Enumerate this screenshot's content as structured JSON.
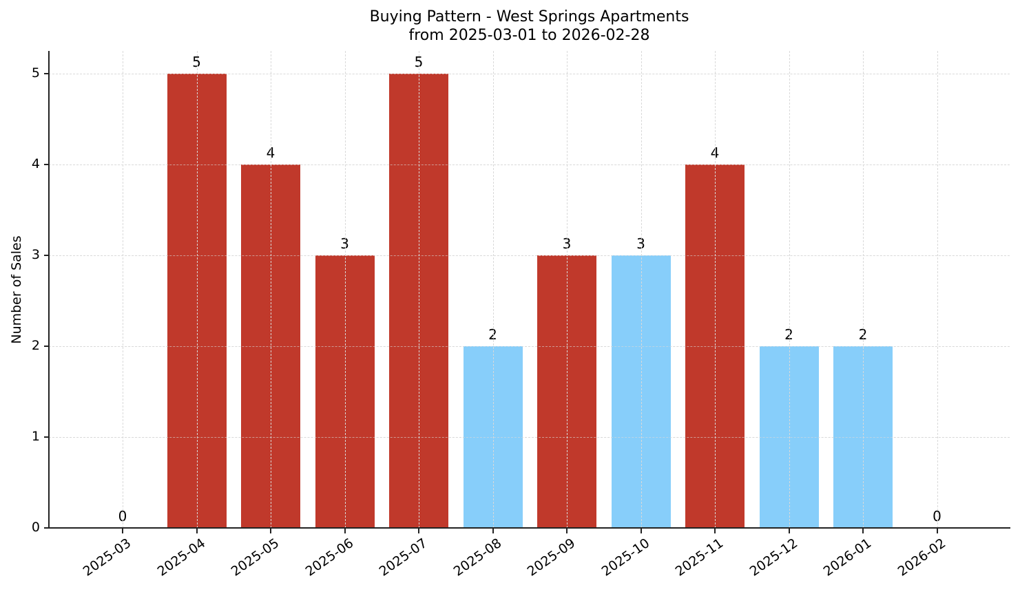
{
  "chart_data": {
    "type": "bar",
    "title": "Buying Pattern - West Springs Apartments",
    "subtitle": "from 2025-03-01 to 2026-02-28",
    "xlabel": "",
    "ylabel": "Number of Sales",
    "ylim": [
      0,
      5.25
    ],
    "yticks": [
      0,
      1,
      2,
      3,
      4,
      5
    ],
    "grid": true,
    "legend": null,
    "categories": [
      "2025-03",
      "2025-04",
      "2025-05",
      "2025-06",
      "2025-07",
      "2025-08",
      "2025-09",
      "2025-10",
      "2025-11",
      "2025-12",
      "2026-01",
      "2026-02"
    ],
    "values": [
      0,
      5,
      4,
      3,
      5,
      2,
      3,
      3,
      4,
      2,
      2,
      0
    ],
    "bar_colors": [
      "#c0392b",
      "#c0392b",
      "#c0392b",
      "#c0392b",
      "#c0392b",
      "#87cefa",
      "#c0392b",
      "#87cefa",
      "#c0392b",
      "#87cefa",
      "#87cefa",
      "#87cefa"
    ],
    "data_labels": [
      "0",
      "5",
      "4",
      "3",
      "5",
      "2",
      "3",
      "3",
      "4",
      "2",
      "2",
      "0"
    ]
  },
  "colors": {
    "high": "#c0392b",
    "low": "#87cefa",
    "axis": "#222222",
    "grid": "#d9d9d9"
  }
}
